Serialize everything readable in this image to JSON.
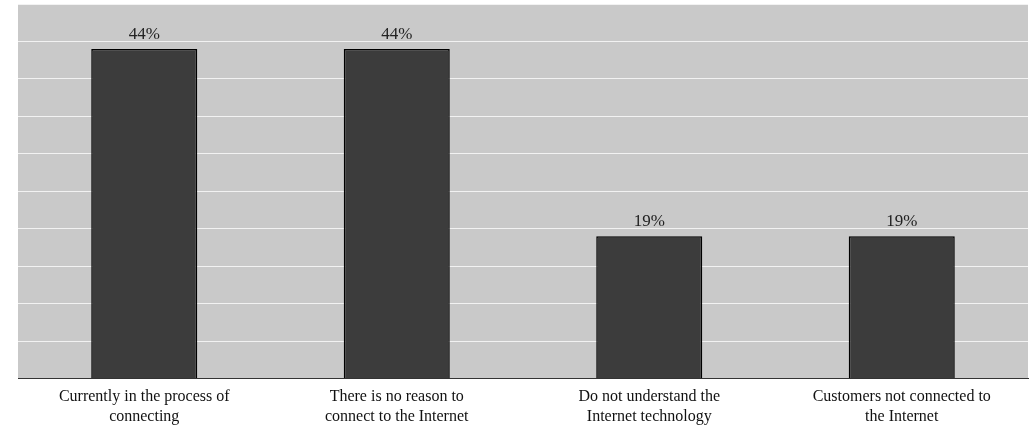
{
  "chart_data": {
    "type": "bar",
    "categories": [
      "Currently in the process of connecting",
      "There is no reason to connect to the Internet",
      "Do not understand the Internet technology",
      "Customers not connected to the Internet"
    ],
    "values": [
      44,
      44,
      19,
      19
    ],
    "value_labels": [
      "44%",
      "44%",
      "19%",
      "19%"
    ],
    "color": "#3c3c3c",
    "grid": "y",
    "tick_labels": "x"
  }
}
